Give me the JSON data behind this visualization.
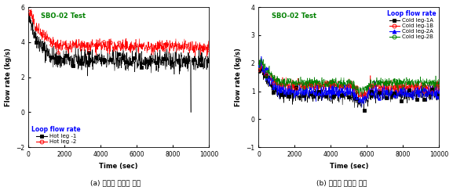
{
  "fig_width": 5.77,
  "fig_height": 2.39,
  "dpi": 100,
  "plot_a": {
    "title": "SBO-02 Test",
    "title_color": "#008000",
    "xlabel": "Time (sec)",
    "ylabel": "Flow rate (kg/s)",
    "xlim": [
      0,
      10000
    ],
    "ylim": [
      -2,
      6
    ],
    "yticks": [
      -2,
      0,
      2,
      4,
      6
    ],
    "xticks": [
      0,
      2000,
      4000,
      6000,
      8000,
      10000
    ],
    "legend_title": "Loop flow rate",
    "legend_title_color": "#0000FF",
    "legend_entries": [
      "Hot leg -1",
      "Hot leg -2"
    ],
    "caption": "(a) 고온관 유량의 변화",
    "series": [
      {
        "name": "Hot leg -1",
        "color": "black",
        "marker": "s",
        "fillstyle": "full",
        "base_start": 5.2,
        "base_mid": 3.0,
        "base_end": 2.9,
        "noise": 0.28,
        "spike_time": 9000,
        "spike_value": 0.0
      },
      {
        "name": "Hot leg -2",
        "color": "red",
        "marker": "o",
        "fillstyle": "none",
        "base_start": 5.6,
        "base_mid": 3.8,
        "base_end": 3.7,
        "noise": 0.18
      }
    ]
  },
  "plot_b": {
    "title": "SBO-02 Test",
    "title_color": "#008000",
    "xlabel": "Time (sec)",
    "ylabel": "Flow rate (kg/s)",
    "xlim": [
      0,
      10000
    ],
    "ylim": [
      -1,
      4
    ],
    "yticks": [
      -1,
      0,
      1,
      2,
      3,
      4
    ],
    "xticks": [
      0,
      2000,
      4000,
      6000,
      8000,
      10000
    ],
    "legend_title": "Loop flow rate",
    "legend_title_color": "#0000FF",
    "legend_entries": [
      "Cold leg-1A",
      "Cold leg-1B",
      "Cold leg-2A",
      "Cold leg-2B"
    ],
    "caption": "(b) 저온관 유량의 변화",
    "series": [
      {
        "name": "Cold leg-1A",
        "color": "black",
        "marker": "s",
        "fillstyle": "full",
        "base_start": 1.75,
        "base_peak": 1.85,
        "base_mid": 0.85,
        "base_end": 0.9,
        "noise": 0.12
      },
      {
        "name": "Cold leg-1B",
        "color": "red",
        "marker": "o",
        "fillstyle": "none",
        "base_start": 1.85,
        "base_peak": 1.95,
        "base_mid": 1.2,
        "base_end": 1.15,
        "noise": 0.1
      },
      {
        "name": "Cold leg-2A",
        "color": "blue",
        "marker": "^",
        "fillstyle": "full",
        "base_start": 1.9,
        "base_peak": 2.05,
        "base_mid": 1.0,
        "base_end": 0.95,
        "noise": 0.12
      },
      {
        "name": "Cold leg-2B",
        "color": "green",
        "marker": "o",
        "fillstyle": "none",
        "base_start": 2.0,
        "base_peak": 2.15,
        "base_mid": 1.3,
        "base_end": 1.3,
        "noise": 0.09
      }
    ]
  }
}
